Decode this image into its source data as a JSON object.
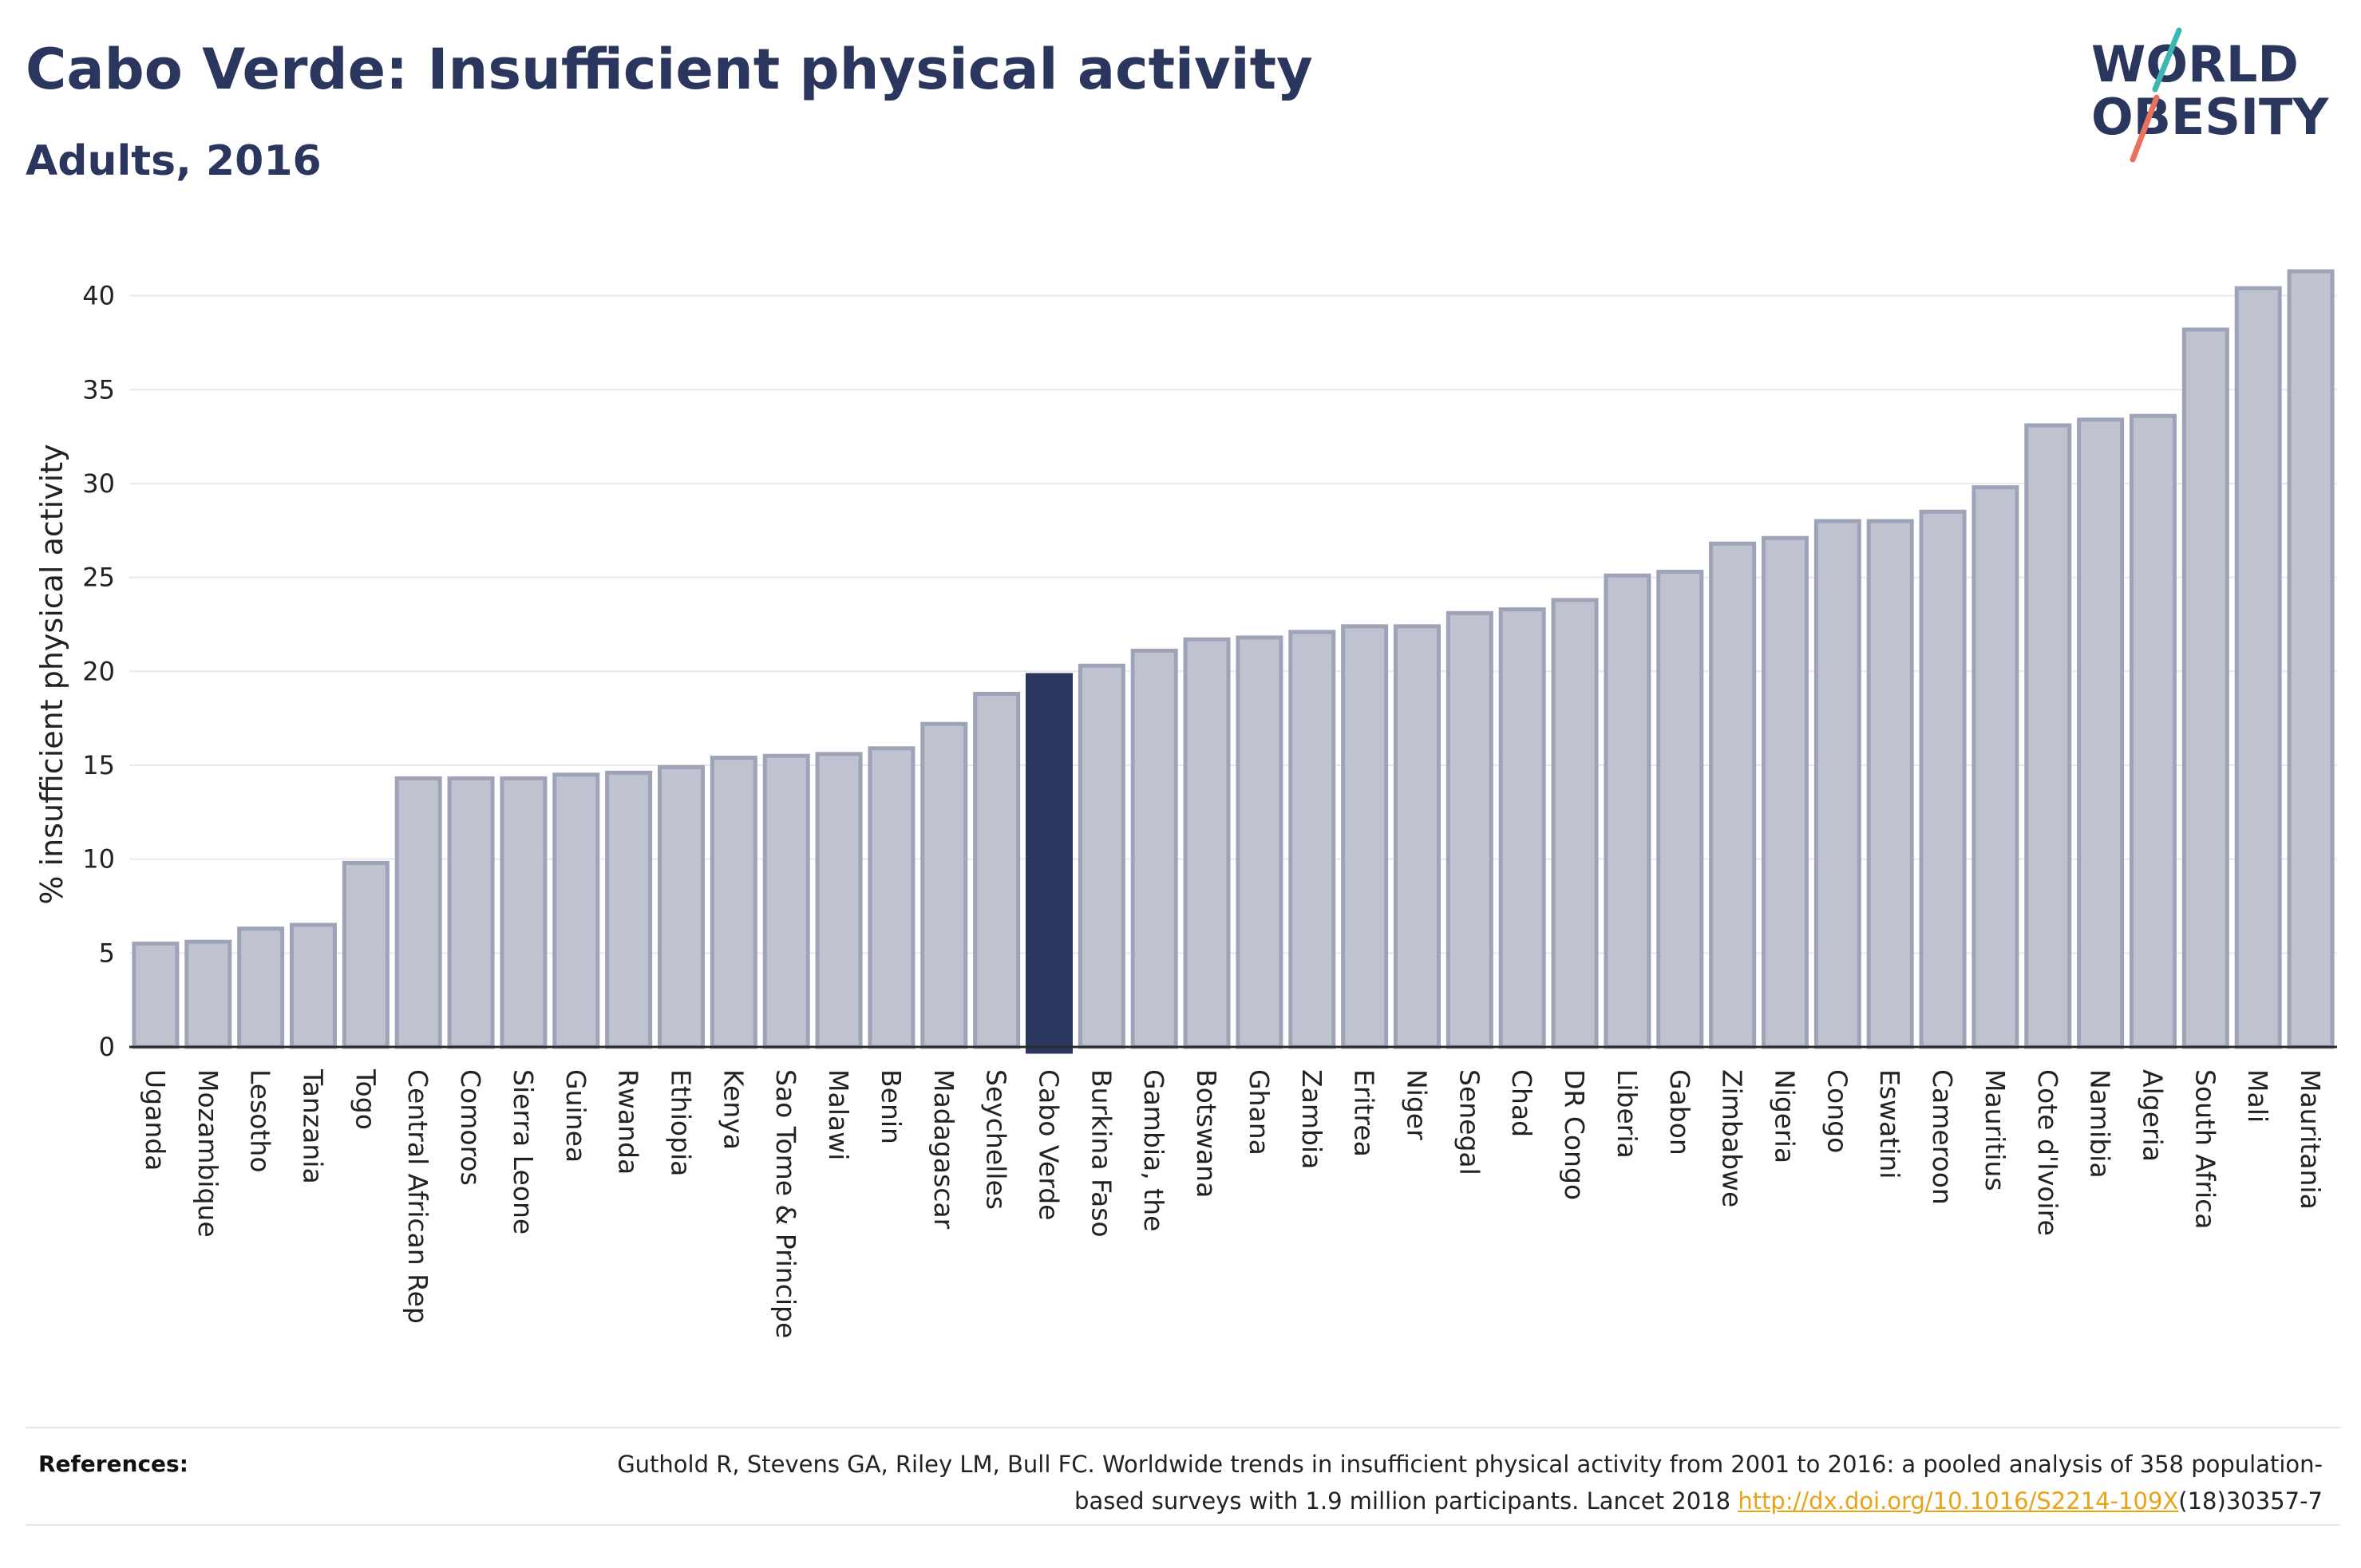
{
  "header": {
    "title": "Cabo Verde: Insufficient physical activity",
    "subtitle": "Adults, 2016"
  },
  "logo": {
    "line1": "WORLD",
    "line2": "OBESITY"
  },
  "chart_data": {
    "type": "bar",
    "categories": [
      "Uganda",
      "Mozambique",
      "Lesotho",
      "Tanzania",
      "Togo",
      "Central African Rep",
      "Comoros",
      "Sierra Leone",
      "Guinea",
      "Rwanda",
      "Ethiopia",
      "Kenya",
      "Sao Tome & Principe",
      "Malawi",
      "Benin",
      "Madagascar",
      "Seychelles",
      "Cabo Verde",
      "Burkina Faso",
      "Gambia, the",
      "Botswana",
      "Ghana",
      "Zambia",
      "Eritrea",
      "Niger",
      "Senegal",
      "Chad",
      "DR Congo",
      "Liberia",
      "Gabon",
      "Zimbabwe",
      "Nigeria",
      "Congo",
      "Eswatini",
      "Cameroon",
      "Mauritius",
      "Cote d'Ivoire",
      "Namibia",
      "Algeria",
      "South Africa",
      "Mali",
      "Mauritania"
    ],
    "values": [
      5.5,
      5.6,
      6.3,
      6.5,
      9.8,
      14.3,
      14.3,
      14.3,
      14.5,
      14.6,
      14.9,
      15.4,
      15.5,
      15.6,
      15.9,
      17.2,
      18.8,
      19.8,
      20.3,
      21.1,
      21.7,
      21.8,
      22.1,
      22.4,
      22.4,
      23.1,
      23.3,
      23.8,
      25.1,
      25.3,
      26.8,
      27.1,
      28.0,
      28.0,
      28.5,
      29.8,
      33.1,
      33.4,
      33.6,
      38.2,
      40.4,
      41.3
    ],
    "highlight": "Cabo Verde",
    "ylabel": "% insufficient physical activity",
    "ylim": [
      0,
      43
    ],
    "yticks": [
      0,
      5,
      10,
      15,
      20,
      25,
      30,
      35,
      40
    ],
    "grid": true,
    "colors": {
      "bar": "#bfc3d0",
      "bar_edge": "#9ea3b8",
      "highlight": "#2b365e"
    }
  },
  "references": {
    "label": "References:",
    "text_before": "Guthold R, Stevens GA, Riley LM, Bull FC. Worldwide trends in insufficient physical activity from 2001 to 2016: a pooled analysis of 358 population-based surveys with 1.9 million participants. Lancet 2018 ",
    "link": "http://dx.doi.org/10.1016/S2214-109X",
    "text_after": "(18)30357-7"
  }
}
